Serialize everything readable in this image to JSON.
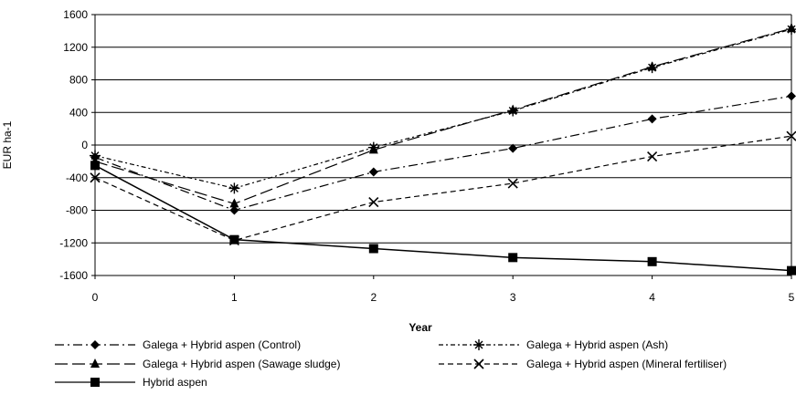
{
  "chart_data": {
    "type": "line",
    "xlabel": "Year",
    "ylabel": "EUR ha-1",
    "x": [
      0,
      1,
      2,
      3,
      4,
      5
    ],
    "ylim": [
      -1600,
      1600
    ],
    "yticks": [
      1600,
      1200,
      800,
      400,
      0,
      -400,
      -800,
      -1200,
      -1600
    ],
    "grid": "horizontal",
    "legend_position": "bottom",
    "series": [
      {
        "name": "Galega + Hybrid aspen (Control)",
        "marker": "diamond",
        "dash": "dashdot",
        "values": [
          -150,
          -800,
          -330,
          -40,
          320,
          600
        ]
      },
      {
        "name": "Galega + Hybrid aspen (Ash)",
        "marker": "star",
        "dash": "dashdot-dense",
        "values": [
          -130,
          -530,
          -30,
          420,
          950,
          1420
        ]
      },
      {
        "name": "Galega + Hybrid aspen (Sawage sludge)",
        "marker": "triangle",
        "dash": "longdash",
        "values": [
          -200,
          -720,
          -60,
          430,
          960,
          1430
        ]
      },
      {
        "name": "Galega + Hybrid aspen (Mineral fertiliser)",
        "marker": "x",
        "dash": "dashed",
        "values": [
          -400,
          -1170,
          -700,
          -470,
          -140,
          110
        ]
      },
      {
        "name": "Hybrid aspen",
        "marker": "square",
        "dash": "solid",
        "values": [
          -250,
          -1160,
          -1270,
          -1380,
          -1430,
          -1540
        ]
      }
    ]
  }
}
